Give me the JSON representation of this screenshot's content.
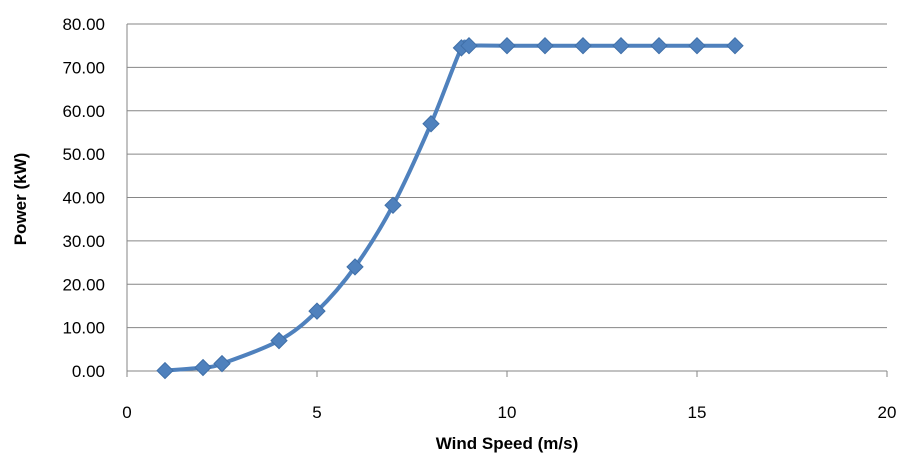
{
  "chart_data": {
    "type": "scatter",
    "title": "",
    "xlabel": "Wind Speed (m/s)",
    "ylabel": "Power (kW)",
    "xlim": [
      0,
      20
    ],
    "ylim": [
      0,
      80
    ],
    "x_ticks": [
      "0",
      "5",
      "10",
      "15",
      "20"
    ],
    "y_ticks": [
      "0.00",
      "10.00",
      "20.00",
      "30.00",
      "40.00",
      "50.00",
      "60.00",
      "70.00",
      "80.00"
    ],
    "x_tick_values": [
      0,
      5,
      10,
      15,
      20
    ],
    "y_tick_values": [
      0,
      10,
      20,
      30,
      40,
      50,
      60,
      70,
      80
    ],
    "grid": "horizontal",
    "legend": "none",
    "line_style": "smoothed line with diamond markers",
    "series": [
      {
        "color": "#4F81BD",
        "x": [
          1,
          2,
          2.5,
          4,
          5,
          6,
          7,
          8,
          8.8,
          9,
          10,
          11,
          12,
          13,
          14,
          15,
          16
        ],
        "y": [
          0.1,
          0.8,
          1.7,
          7.0,
          13.8,
          24.0,
          38.2,
          57.0,
          74.5,
          75,
          75,
          75,
          75,
          75,
          75,
          75,
          75
        ]
      }
    ]
  }
}
